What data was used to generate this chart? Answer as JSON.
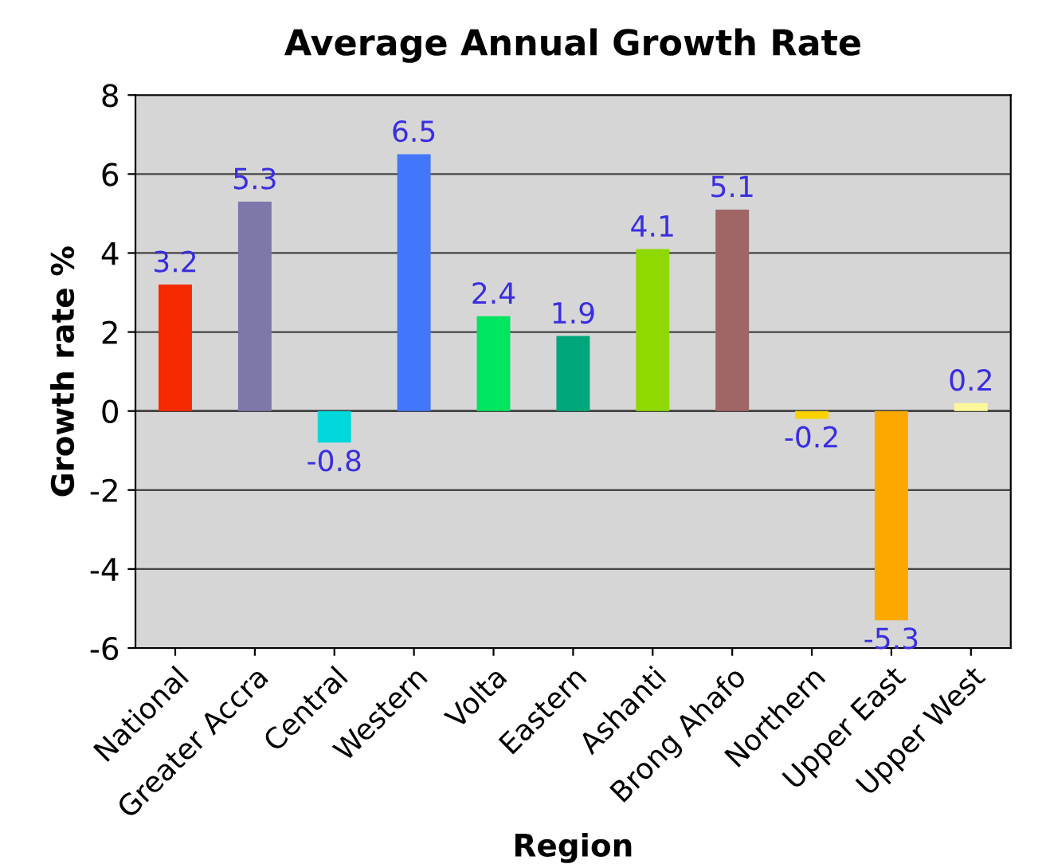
{
  "chart_data": {
    "type": "bar",
    "title": "Average Annual Growth Rate",
    "xlabel": "Region",
    "ylabel": "Growth rate %",
    "categories": [
      "National",
      "Greater Accra",
      "Central",
      "Western",
      "Volta",
      "Eastern",
      "Ashanti",
      "Brong Ahafo",
      "Northern",
      "Upper East",
      "Upper West"
    ],
    "values": [
      3.2,
      5.3,
      -0.8,
      6.5,
      2.4,
      1.9,
      4.1,
      5.1,
      -0.2,
      -5.3,
      0.2
    ],
    "colors": [
      "#f52a00",
      "#7e77aa",
      "#00d8dc",
      "#4277fc",
      "#00e55f",
      "#00a77a",
      "#8fd800",
      "#a06565",
      "#fcd200",
      "#fca800",
      "#fcf79a"
    ],
    "ylim": [
      -6,
      8
    ],
    "yticks": [
      -6,
      -4,
      -2,
      0,
      2,
      4,
      6,
      8
    ],
    "grid": "y",
    "data_labels": true,
    "legend": false
  }
}
